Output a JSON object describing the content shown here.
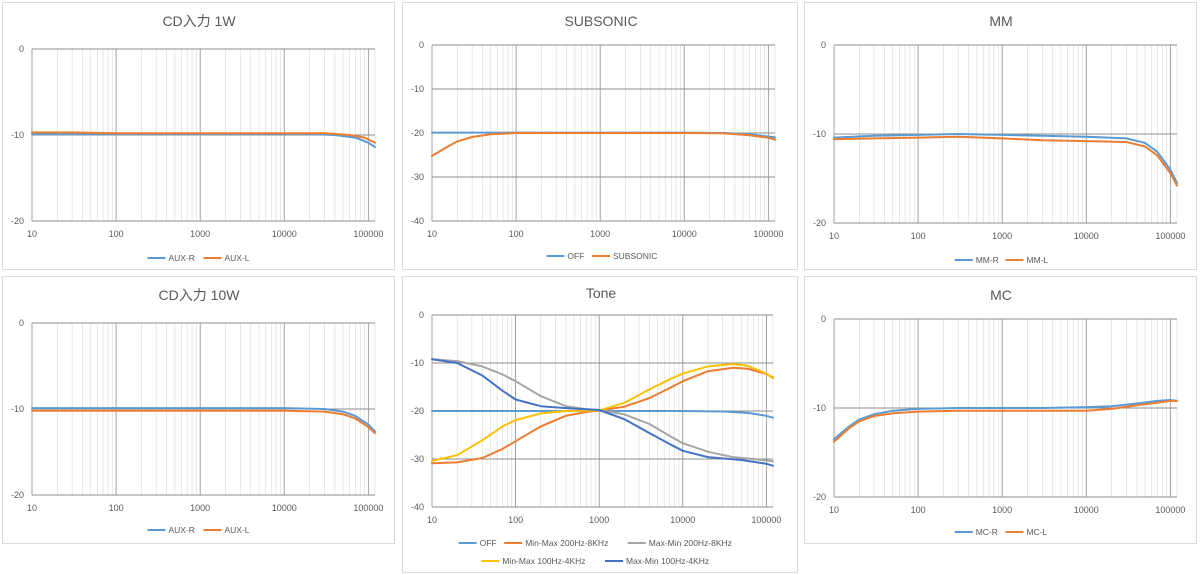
{
  "colors": {
    "blue": "#5b9bd5",
    "orange": "#ed7d31",
    "gray": "#a5a5a5",
    "yellow": "#ffc000",
    "navy": "#4472c4",
    "grid_minor": "#d9d9d9",
    "grid_major": "#8c8c8c"
  },
  "chart_data": [
    {
      "id": "cd1w",
      "type": "line",
      "title": "CD入力 1W",
      "x_scale": "log",
      "xlim": [
        10,
        120000
      ],
      "ylim": [
        -20,
        0
      ],
      "y_major": 10,
      "x_ticks": [
        "10",
        "100",
        "1000",
        "10000",
        "100000"
      ],
      "y_ticks": [
        "0",
        "-10",
        "-20"
      ],
      "legend": "bottom",
      "series": [
        {
          "name": "AUX-R",
          "color": "#5b9bd5",
          "points": [
            [
              10,
              -9.9
            ],
            [
              30,
              -9.9
            ],
            [
              100,
              -9.9
            ],
            [
              1000,
              -9.9
            ],
            [
              10000,
              -9.9
            ],
            [
              20000,
              -9.9
            ],
            [
              40000,
              -10.0
            ],
            [
              70000,
              -10.3
            ],
            [
              100000,
              -10.9
            ],
            [
              120000,
              -11.4
            ]
          ]
        },
        {
          "name": "AUX-L",
          "color": "#ed7d31",
          "points": [
            [
              10,
              -9.7
            ],
            [
              30,
              -9.7
            ],
            [
              100,
              -9.8
            ],
            [
              1000,
              -9.8
            ],
            [
              10000,
              -9.8
            ],
            [
              30000,
              -9.8
            ],
            [
              60000,
              -10.0
            ],
            [
              90000,
              -10.3
            ],
            [
              120000,
              -10.9
            ]
          ]
        }
      ]
    },
    {
      "id": "subsonic",
      "type": "line",
      "title": "SUBSONIC",
      "x_scale": "log",
      "xlim": [
        10,
        120000
      ],
      "ylim": [
        -40,
        0
      ],
      "y_major": 10,
      "x_ticks": [
        "10",
        "100",
        "1000",
        "10000",
        "100000"
      ],
      "y_ticks": [
        "0",
        "-10",
        "-20",
        "-30",
        "-40"
      ],
      "legend": "bottom",
      "series": [
        {
          "name": "OFF",
          "color": "#5b9bd5",
          "points": [
            [
              10,
              -19.9
            ],
            [
              100,
              -19.9
            ],
            [
              1000,
              -19.9
            ],
            [
              10000,
              -19.9
            ],
            [
              30000,
              -20.0
            ],
            [
              60000,
              -20.3
            ],
            [
              100000,
              -20.8
            ],
            [
              120000,
              -21.0
            ]
          ]
        },
        {
          "name": "SUBSONIC",
          "color": "#ed7d31",
          "points": [
            [
              10,
              -25.2
            ],
            [
              15,
              -23.2
            ],
            [
              20,
              -21.9
            ],
            [
              30,
              -20.9
            ],
            [
              50,
              -20.3
            ],
            [
              100,
              -20.0
            ],
            [
              1000,
              -20.0
            ],
            [
              10000,
              -20.0
            ],
            [
              30000,
              -20.1
            ],
            [
              60000,
              -20.5
            ],
            [
              100000,
              -21.1
            ],
            [
              120000,
              -21.5
            ]
          ]
        }
      ]
    },
    {
      "id": "mm",
      "type": "line",
      "title": "MM",
      "x_scale": "log",
      "xlim": [
        10,
        120000
      ],
      "ylim": [
        -20,
        0
      ],
      "y_major": 10,
      "x_ticks": [
        "10",
        "100",
        "1000",
        "10000",
        "100000"
      ],
      "y_ticks": [
        "0",
        "-10",
        "-20"
      ],
      "legend": "bottom",
      "series": [
        {
          "name": "MM-R",
          "color": "#5b9bd5",
          "points": [
            [
              10,
              -10.4
            ],
            [
              30,
              -10.2
            ],
            [
              100,
              -10.1
            ],
            [
              300,
              -10.0
            ],
            [
              1000,
              -10.1
            ],
            [
              3000,
              -10.2
            ],
            [
              10000,
              -10.3
            ],
            [
              30000,
              -10.5
            ],
            [
              50000,
              -11.0
            ],
            [
              70000,
              -12.0
            ],
            [
              100000,
              -14.0
            ],
            [
              120000,
              -15.5
            ]
          ]
        },
        {
          "name": "MM-L",
          "color": "#ed7d31",
          "points": [
            [
              10,
              -10.6
            ],
            [
              30,
              -10.5
            ],
            [
              100,
              -10.4
            ],
            [
              300,
              -10.3
            ],
            [
              1000,
              -10.5
            ],
            [
              3000,
              -10.7
            ],
            [
              10000,
              -10.8
            ],
            [
              30000,
              -10.9
            ],
            [
              50000,
              -11.4
            ],
            [
              70000,
              -12.4
            ],
            [
              100000,
              -14.4
            ],
            [
              120000,
              -15.8
            ]
          ]
        }
      ]
    },
    {
      "id": "cd10w",
      "type": "line",
      "title": "CD入力 10W",
      "x_scale": "log",
      "xlim": [
        10,
        120000
      ],
      "ylim": [
        -20,
        0
      ],
      "y_major": 10,
      "x_ticks": [
        "10",
        "100",
        "1000",
        "10000",
        "100000"
      ],
      "y_ticks": [
        "0",
        "-10",
        "-20"
      ],
      "legend": "bottom",
      "series": [
        {
          "name": "AUX-R",
          "color": "#5b9bd5",
          "points": [
            [
              10,
              -9.9
            ],
            [
              100,
              -9.9
            ],
            [
              1000,
              -9.9
            ],
            [
              10000,
              -9.9
            ],
            [
              30000,
              -10.0
            ],
            [
              50000,
              -10.3
            ],
            [
              70000,
              -10.8
            ],
            [
              100000,
              -11.8
            ],
            [
              120000,
              -12.6
            ]
          ]
        },
        {
          "name": "AUX-L",
          "color": "#ed7d31",
          "points": [
            [
              10,
              -10.2
            ],
            [
              100,
              -10.2
            ],
            [
              1000,
              -10.2
            ],
            [
              10000,
              -10.2
            ],
            [
              30000,
              -10.3
            ],
            [
              50000,
              -10.6
            ],
            [
              70000,
              -11.1
            ],
            [
              100000,
              -12.1
            ],
            [
              120000,
              -12.8
            ]
          ]
        }
      ]
    },
    {
      "id": "tone",
      "type": "line",
      "title": "Tone",
      "x_scale": "log",
      "xlim": [
        10,
        120000
      ],
      "ylim": [
        -40,
        0
      ],
      "y_major": 10,
      "x_ticks": [
        "10",
        "100",
        "1000",
        "10000",
        "100000"
      ],
      "y_ticks": [
        "0",
        "-10",
        "-20",
        "-30",
        "-40"
      ],
      "legend": "bottom",
      "series": [
        {
          "name": "OFF",
          "color": "#5b9bd5",
          "points": [
            [
              10,
              -20.0
            ],
            [
              100,
              -20.0
            ],
            [
              1000,
              -20.0
            ],
            [
              10000,
              -20.0
            ],
            [
              30000,
              -20.1
            ],
            [
              60000,
              -20.4
            ],
            [
              100000,
              -21.0
            ],
            [
              120000,
              -21.4
            ]
          ]
        },
        {
          "name": "Min-Max 200Hz-8KHz",
          "color": "#ed7d31",
          "points": [
            [
              10,
              -30.9
            ],
            [
              20,
              -30.7
            ],
            [
              40,
              -29.8
            ],
            [
              70,
              -27.9
            ],
            [
              100,
              -26.3
            ],
            [
              200,
              -23.2
            ],
            [
              400,
              -21.0
            ],
            [
              700,
              -20.2
            ],
            [
              1000,
              -19.9
            ],
            [
              2000,
              -19.1
            ],
            [
              4000,
              -17.3
            ],
            [
              7000,
              -15.2
            ],
            [
              10000,
              -13.8
            ],
            [
              20000,
              -11.7
            ],
            [
              40000,
              -11.0
            ],
            [
              60000,
              -11.2
            ],
            [
              100000,
              -12.3
            ],
            [
              120000,
              -13.0
            ]
          ]
        },
        {
          "name": "Max-Min 200Hz-8KHz",
          "color": "#a5a5a5",
          "points": [
            [
              10,
              -9.2
            ],
            [
              20,
              -9.6
            ],
            [
              40,
              -10.7
            ],
            [
              70,
              -12.4
            ],
            [
              100,
              -13.8
            ],
            [
              200,
              -16.9
            ],
            [
              400,
              -19.0
            ],
            [
              700,
              -19.6
            ],
            [
              1000,
              -19.8
            ],
            [
              2000,
              -20.7
            ],
            [
              4000,
              -22.7
            ],
            [
              7000,
              -25.2
            ],
            [
              10000,
              -26.7
            ],
            [
              20000,
              -28.5
            ],
            [
              40000,
              -29.6
            ],
            [
              100000,
              -30.3
            ],
            [
              120000,
              -30.5
            ]
          ]
        },
        {
          "name": "Min-Max 100Hz-4KHz",
          "color": "#ffc000",
          "points": [
            [
              10,
              -30.4
            ],
            [
              20,
              -29.2
            ],
            [
              40,
              -26.1
            ],
            [
              70,
              -23.2
            ],
            [
              100,
              -21.9
            ],
            [
              200,
              -20.5
            ],
            [
              400,
              -20.0
            ],
            [
              1000,
              -19.9
            ],
            [
              2000,
              -18.3
            ],
            [
              4000,
              -15.5
            ],
            [
              7000,
              -13.4
            ],
            [
              10000,
              -12.2
            ],
            [
              20000,
              -10.7
            ],
            [
              40000,
              -10.2
            ],
            [
              60000,
              -10.6
            ],
            [
              100000,
              -12.2
            ],
            [
              120000,
              -13.2
            ]
          ]
        },
        {
          "name": "Max-Min 100Hz-4KHz",
          "color": "#4472c4",
          "points": [
            [
              10,
              -9.2
            ],
            [
              20,
              -10.0
            ],
            [
              40,
              -12.6
            ],
            [
              70,
              -15.8
            ],
            [
              100,
              -17.6
            ],
            [
              200,
              -19.0
            ],
            [
              400,
              -19.4
            ],
            [
              1000,
              -19.8
            ],
            [
              2000,
              -21.7
            ],
            [
              4000,
              -24.6
            ],
            [
              7000,
              -26.9
            ],
            [
              10000,
              -28.3
            ],
            [
              20000,
              -29.6
            ],
            [
              50000,
              -30.2
            ],
            [
              100000,
              -31.0
            ],
            [
              120000,
              -31.4
            ]
          ]
        }
      ]
    },
    {
      "id": "mc",
      "type": "line",
      "title": "MC",
      "x_scale": "log",
      "xlim": [
        10,
        120000
      ],
      "ylim": [
        -20,
        0
      ],
      "y_major": 10,
      "x_ticks": [
        "10",
        "100",
        "1000",
        "10000",
        "100000"
      ],
      "y_ticks": [
        "0",
        "-10",
        "-20"
      ],
      "legend": "bottom",
      "series": [
        {
          "name": "MC-R",
          "color": "#5b9bd5",
          "points": [
            [
              10,
              -13.5
            ],
            [
              15,
              -12.1
            ],
            [
              20,
              -11.3
            ],
            [
              30,
              -10.7
            ],
            [
              50,
              -10.3
            ],
            [
              100,
              -10.1
            ],
            [
              300,
              -10.0
            ],
            [
              1000,
              -10.0
            ],
            [
              3000,
              -10.0
            ],
            [
              10000,
              -9.9
            ],
            [
              20000,
              -9.8
            ],
            [
              40000,
              -9.5
            ],
            [
              70000,
              -9.2
            ],
            [
              100000,
              -9.1
            ],
            [
              120000,
              -9.2
            ]
          ]
        },
        {
          "name": "MC-L",
          "color": "#ed7d31",
          "points": [
            [
              10,
              -13.8
            ],
            [
              15,
              -12.3
            ],
            [
              20,
              -11.5
            ],
            [
              30,
              -10.9
            ],
            [
              50,
              -10.6
            ],
            [
              100,
              -10.4
            ],
            [
              300,
              -10.3
            ],
            [
              1000,
              -10.3
            ],
            [
              3000,
              -10.3
            ],
            [
              10000,
              -10.3
            ],
            [
              20000,
              -10.1
            ],
            [
              40000,
              -9.7
            ],
            [
              70000,
              -9.4
            ],
            [
              100000,
              -9.2
            ],
            [
              120000,
              -9.2
            ]
          ]
        }
      ]
    }
  ]
}
